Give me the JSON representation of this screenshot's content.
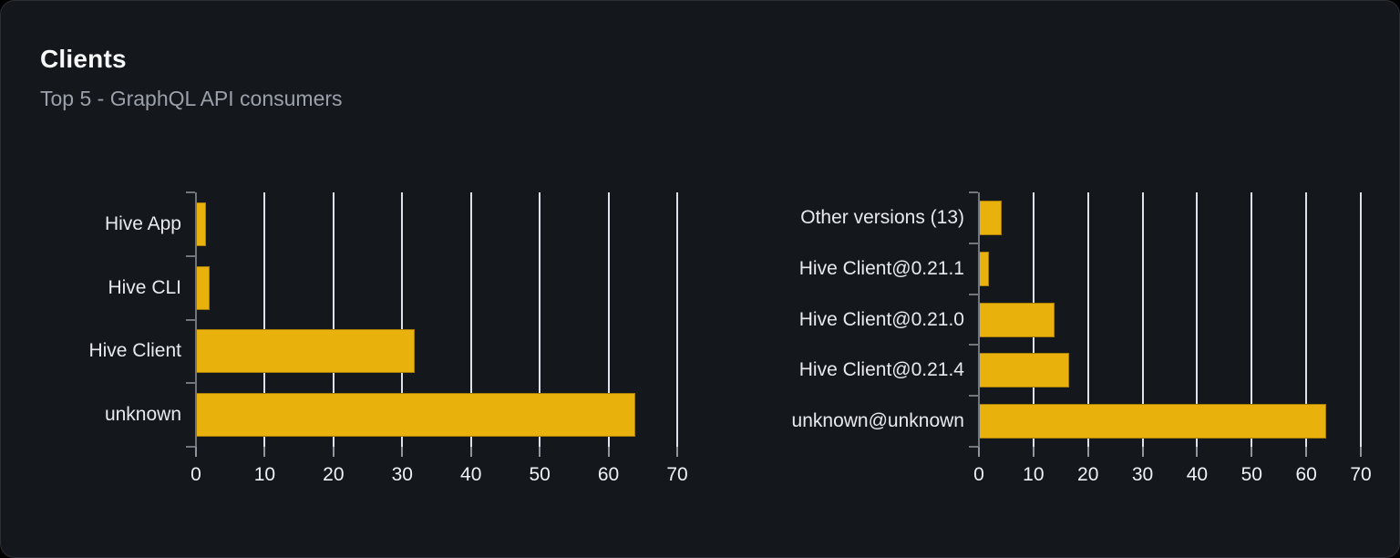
{
  "card": {
    "title": "Clients",
    "subtitle": "Top 5 - GraphQL API consumers"
  },
  "colors": {
    "bar": "#e9b10c",
    "card_background": "#14171c",
    "card_border": "#2b2f36",
    "page_background": "#000000",
    "gridline": "#dde2ec",
    "axis": "#70757e",
    "label_text": "#e8eaee",
    "title_text": "#f7f8f9",
    "subtitle_text": "#9aa1ab"
  },
  "chart_data": [
    {
      "type": "bar",
      "orientation": "horizontal",
      "title": "",
      "categories": [
        "Hive App",
        "Hive CLI",
        "Hive Client",
        "unknown"
      ],
      "values": [
        1.4,
        2,
        31.8,
        63.9
      ],
      "xlim": [
        0,
        70
      ],
      "xticks": [
        0,
        10,
        20,
        30,
        40,
        50,
        60,
        70
      ],
      "grid": true,
      "legend": "none",
      "bar_color": "#e9b10c"
    },
    {
      "type": "bar",
      "orientation": "horizontal",
      "title": "",
      "categories": [
        "Other versions (13)",
        "Hive Client@0.21.1",
        "Hive Client@0.21.0",
        "Hive Client@0.21.4",
        "unknown@unknown"
      ],
      "values": [
        4.1,
        1.8,
        13.9,
        16.6,
        63.7
      ],
      "xlim": [
        0,
        70
      ],
      "xticks": [
        0,
        10,
        20,
        30,
        40,
        50,
        60,
        70
      ],
      "grid": true,
      "legend": "none",
      "bar_color": "#e9b10c"
    }
  ]
}
